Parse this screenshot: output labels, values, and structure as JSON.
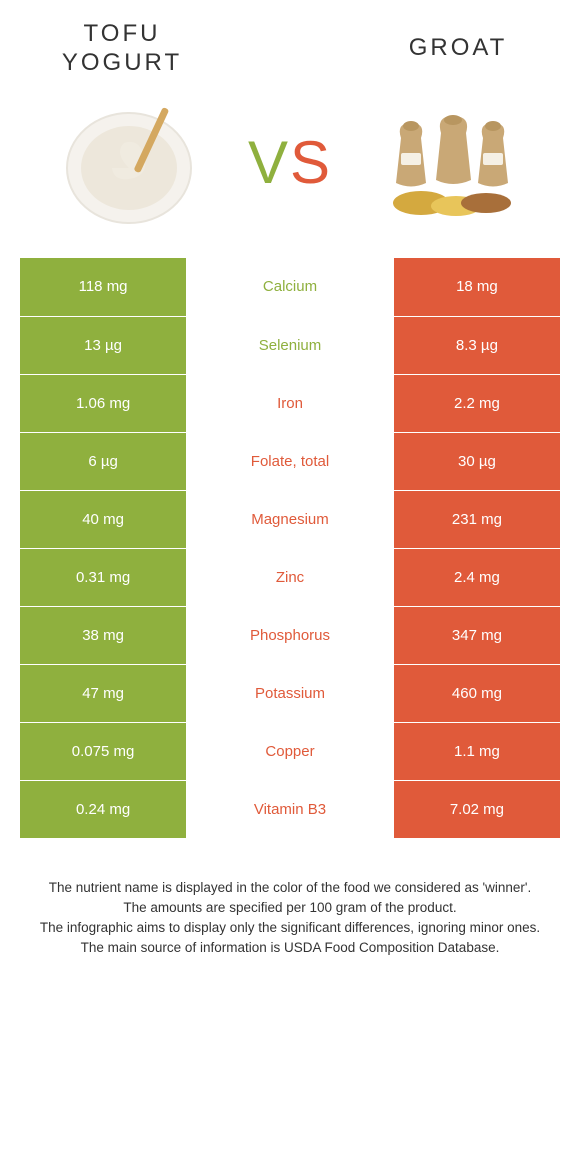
{
  "header": {
    "left_title": "TOFU\nYOGURT",
    "right_title": "GROAT",
    "vs_v": "V",
    "vs_s": "S"
  },
  "colors": {
    "left_bg": "#8fb03e",
    "right_bg": "#e05a3a",
    "left_text": "#8fb03e",
    "right_text": "#e05a3a"
  },
  "rows": [
    {
      "left": "118 mg",
      "label": "Calcium",
      "right": "18 mg",
      "winner": "left"
    },
    {
      "left": "13 µg",
      "label": "Selenium",
      "right": "8.3 µg",
      "winner": "left"
    },
    {
      "left": "1.06 mg",
      "label": "Iron",
      "right": "2.2 mg",
      "winner": "right"
    },
    {
      "left": "6 µg",
      "label": "Folate, total",
      "right": "30 µg",
      "winner": "right"
    },
    {
      "left": "40 mg",
      "label": "Magnesium",
      "right": "231 mg",
      "winner": "right"
    },
    {
      "left": "0.31 mg",
      "label": "Zinc",
      "right": "2.4 mg",
      "winner": "right"
    },
    {
      "left": "38 mg",
      "label": "Phosphorus",
      "right": "347 mg",
      "winner": "right"
    },
    {
      "left": "47 mg",
      "label": "Potassium",
      "right": "460 mg",
      "winner": "right"
    },
    {
      "left": "0.075 mg",
      "label": "Copper",
      "right": "1.1 mg",
      "winner": "right"
    },
    {
      "left": "0.24 mg",
      "label": "Vitamin B3",
      "right": "7.02 mg",
      "winner": "right"
    }
  ],
  "footer": {
    "line1": "The nutrient name is displayed in the color of the food we considered as 'winner'.",
    "line2": "The amounts are specified per 100 gram of the product.",
    "line3": "The infographic aims to display only the significant differences, ignoring minor ones.",
    "line4": "The main source of information is USDA Food Composition Database."
  }
}
